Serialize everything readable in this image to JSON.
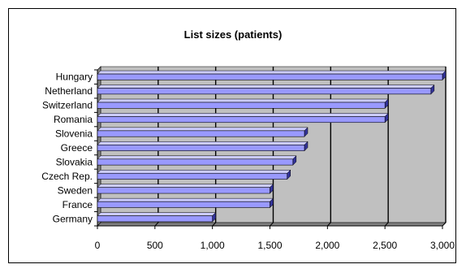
{
  "chart_data": {
    "type": "bar",
    "orientation": "horizontal",
    "style": "3d",
    "title": "List sizes (patients)",
    "xlabel": "",
    "ylabel": "",
    "categories": [
      "Hungary",
      "Netherland",
      "Switzerland",
      "Romania",
      "Slovenia",
      "Greece",
      "Slovakia",
      "Czech Rep.",
      "Sweden",
      "France",
      "Germany"
    ],
    "values": [
      3000,
      2900,
      2500,
      2500,
      1800,
      1800,
      1700,
      1650,
      1500,
      1500,
      1000
    ],
    "xlim": [
      0,
      3000
    ],
    "x_ticks": [
      0,
      500,
      1000,
      1500,
      2000,
      2500,
      3000
    ],
    "x_tick_labels": [
      "0",
      "500",
      "1,000",
      "1,500",
      "2,000",
      "2,500",
      "3,000"
    ],
    "grid": "vertical major gridlines",
    "legend": "none",
    "colors": {
      "bar_front": "#9999ff",
      "bar_top": "#ccccff",
      "bar_side": "#333399",
      "plot_wall": "#c0c0c0",
      "floor": "#808080",
      "gridline": "#000000"
    }
  }
}
